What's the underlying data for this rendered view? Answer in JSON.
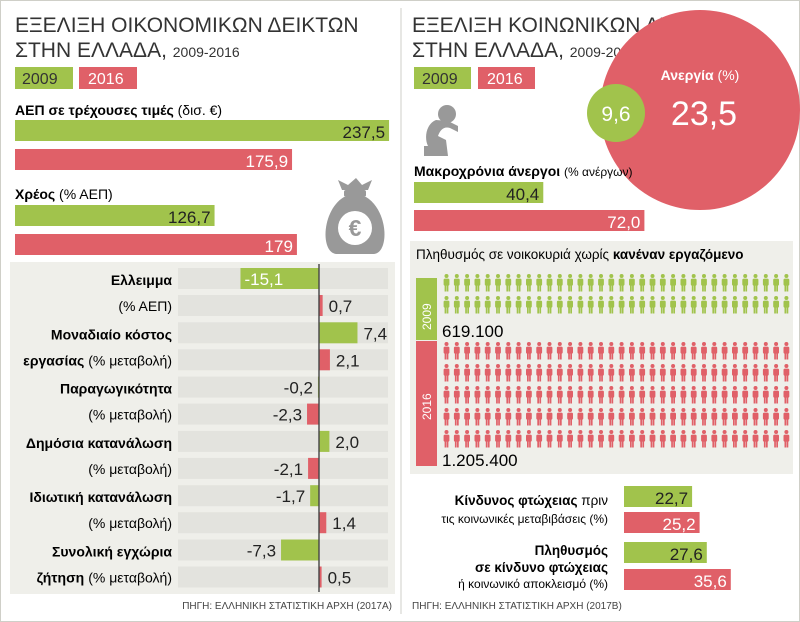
{
  "colors": {
    "y2009": "#a1c34c",
    "y2016": "#e06068",
    "panel": "#efefea",
    "grey": "#e3e3de",
    "divider": "#cfcfc8",
    "axis": "#444444",
    "icon": "#999999"
  },
  "icons": [
    "money-bag-euro-icon",
    "despair-person-icon",
    "person-pictogram-icon"
  ],
  "left": {
    "title_line1": "ΕΞΕΛΙΞΗ ΟΙΚΟΝΟΜΙΚΩΝ ΔΕΙΚΤΩΝ",
    "title_line2": "ΣΤΗΝ ΕΛΛΑΔΑ,",
    "years_range": "2009-2016",
    "legend_2009": "2009",
    "legend_2016": "2016",
    "source": "ΠΗΓΗ: ΕΛΛΗΝΙΚΗ ΣΤΑΤΙΣΤΙΚΗ ΑΡΧΗ (2017Α)"
  },
  "right": {
    "title_line1": "ΕΞΕΛΙΞΗ ΚΟΙΝΩΝΙΚΩΝ ΔΕΙΚΤΩΝ",
    "title_line2": "ΣΤΗΝ ΕΛΛΑΔΑ,",
    "years_range": "2009-2016",
    "legend_2009": "2009",
    "legend_2016": "2016",
    "source": "ΠΗΓΗ: ΕΛΛΗΝΙΚΗ ΣΤΑΤΙΣΤΙΚΗ ΑΡΧΗ (2017Β)"
  },
  "chart_data": [
    {
      "type": "bar",
      "title": "ΑΕΠ σε τρέχουσες τιμές",
      "unit": "(δισ. €)",
      "categories": [
        "2009",
        "2016"
      ],
      "values": [
        237.5,
        175.9
      ],
      "labels": [
        "237,5",
        "175,9"
      ]
    },
    {
      "type": "bar",
      "title": "Χρέος",
      "unit": "(% ΑΕΠ)",
      "categories": [
        "2009",
        "2016"
      ],
      "values": [
        126.7,
        179
      ],
      "labels": [
        "126,7",
        "179"
      ]
    },
    {
      "type": "bar",
      "diverging": true,
      "categories": [
        "2009",
        "2016"
      ],
      "series": [
        {
          "name": "Ελλειμμα",
          "sub": "(% ΑΕΠ)",
          "values": [
            -15.1,
            0.7
          ],
          "labels": [
            "-15,1",
            "0,7"
          ]
        },
        {
          "name": "Μοναδιαίο κόστος",
          "name2": "εργασίας",
          "sub": "(% μεταβολή)",
          "values": [
            7.4,
            2.1
          ],
          "labels": [
            "7,4",
            "2,1"
          ]
        },
        {
          "name": "Παραγωγικότητα",
          "sub": "(% μεταβολή)",
          "values": [
            -0.2,
            -2.3
          ],
          "labels": [
            "-0,2",
            "-2,3"
          ]
        },
        {
          "name": "Δημόσια κατανάλωση",
          "sub": "(% μεταβολή)",
          "values": [
            2.0,
            -2.1
          ],
          "labels": [
            "2,0",
            "-2,1"
          ]
        },
        {
          "name": "Ιδιωτική κατανάλωση",
          "sub": "(% μεταβολή)",
          "values": [
            -1.7,
            1.4
          ],
          "labels": [
            "-1,7",
            "1,4"
          ]
        },
        {
          "name": "Συνολική εγχώρια",
          "name2": "ζήτηση",
          "sub": "(% μεταβολή)",
          "values": [
            -7.3,
            0.5
          ],
          "labels": [
            "-7,3",
            "0,5"
          ]
        }
      ]
    },
    {
      "type": "bubble",
      "title": "Ανεργία",
      "unit": "(%)",
      "categories": [
        "2009",
        "2016"
      ],
      "values": [
        9.6,
        23.5
      ],
      "labels": [
        "9,6",
        "23,5"
      ]
    },
    {
      "type": "bar",
      "title": "Μακροχρόνια άνεργοι",
      "unit": "(% ανέργων)",
      "categories": [
        "2009",
        "2016"
      ],
      "values": [
        40.4,
        72.0
      ],
      "labels": [
        "40,4",
        "72,0"
      ]
    },
    {
      "type": "pictogram",
      "title_pre": "Πληθυσμός σε νοικοκυριά χωρίς",
      "title_bold": "κανέναν εργαζόμενο",
      "categories": [
        "2009",
        "2016"
      ],
      "values": [
        619100,
        1205400
      ],
      "labels": [
        "619.100",
        "1.205.400"
      ]
    },
    {
      "type": "bar",
      "title": "Κίνδυνος φτώχειας",
      "title_rest": "πριν",
      "sub": "τις κοινωνικές μεταβιβάσεις (%)",
      "categories": [
        "2009",
        "2016"
      ],
      "values": [
        22.7,
        25.2
      ],
      "labels": [
        "22,7",
        "25,2"
      ]
    },
    {
      "type": "bar",
      "title": "Πληθυσμός",
      "title2": "σε κίνδυνο φτώχειας",
      "sub": "ή κοινωνικό αποκλεισμό (%)",
      "categories": [
        "2009",
        "2016"
      ],
      "values": [
        27.6,
        35.6
      ],
      "labels": [
        "27,6",
        "35,6"
      ]
    }
  ]
}
